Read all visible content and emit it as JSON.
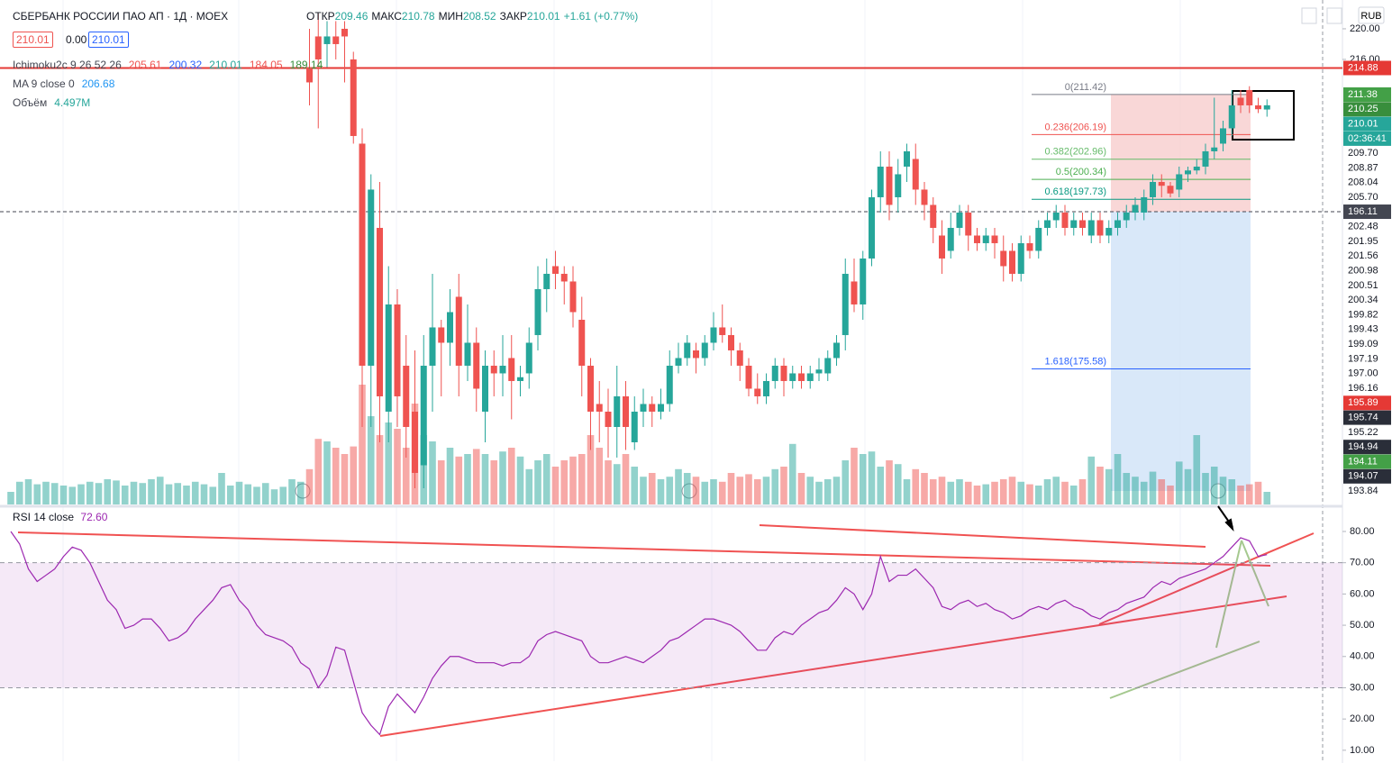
{
  "header": {
    "symbol": "СБЕРБАНК РОССИИ ПАО АП · 1Д · MOEX",
    "ohlc": [
      {
        "k": "ОТКР",
        "v": "209.46"
      },
      {
        "k": "МАКС",
        "v": "210.78"
      },
      {
        "k": "МИН",
        "v": "208.52"
      },
      {
        "k": "ЗАКР",
        "v": "210.01"
      }
    ],
    "change": "+1.61 (+0.77%)",
    "buttons": [
      "210.01",
      "0.00",
      "210.01"
    ],
    "currency": "RUB",
    "indicators": [
      {
        "name": "Ichimoku2c 9 26 52 26",
        "values": [
          "205.61",
          "200.32",
          "210.01",
          "184.05",
          "189.14"
        ],
        "colors": [
          "#ef5350",
          "#2962ff",
          "#26a69a",
          "#ef5350",
          "#388e3c"
        ]
      },
      {
        "name": "MA 9 close 0",
        "values": [
          "206.68"
        ],
        "colors": [
          "#2196f3"
        ]
      },
      {
        "name": "Объём",
        "values": [
          "4.497M"
        ],
        "colors": [
          "#26a69a"
        ]
      }
    ]
  },
  "chart_data": [
    {
      "type": "candlestick",
      "ylim": [
        157.88,
        223.76
      ],
      "yticks": [
        {
          "value": 220,
          "label": "220.00"
        },
        {
          "value": 216,
          "label": "216.00"
        }
      ],
      "volume_ylim": [
        0,
        400
      ],
      "up_color": "#26a69a",
      "down_color": "#ef5350",
      "open": [
        null,
        null,
        null,
        null,
        null,
        null,
        null,
        null,
        null,
        null,
        null,
        null,
        null,
        null,
        null,
        null,
        null,
        null,
        null,
        null,
        null,
        null,
        null,
        null,
        null,
        null,
        null,
        null,
        null,
        null,
        null,
        null,
        null,
        null,
        215,
        219,
        218,
        219,
        220,
        216,
        205,
        176,
        194,
        170,
        184,
        176,
        170,
        163,
        176,
        181,
        179,
        185,
        176,
        179,
        170,
        176,
        175,
        177,
        174,
        175,
        180,
        186,
        189,
        188,
        187,
        182,
        176,
        171,
        170,
        168,
        172,
        166,
        170,
        171,
        170,
        171,
        176,
        177,
        178,
        177,
        179,
        181,
        180,
        178,
        176,
        173,
        172,
        174,
        176,
        174,
        175,
        174,
        175,
        175,
        177,
        180,
        187,
        184,
        190,
        198,
        202,
        198,
        202,
        203,
        199,
        197,
        193,
        191,
        194,
        196,
        193,
        192,
        193,
        191,
        191,
        188,
        192,
        191,
        194,
        195,
        196,
        194,
        195,
        193,
        195,
        193,
        194,
        195,
        196,
        196,
        198,
        200,
        199.5,
        199,
        201,
        201.5,
        202,
        204,
        205,
        207,
        211,
        212,
        210,
        209.46
      ],
      "close": [
        null,
        null,
        null,
        null,
        null,
        null,
        null,
        null,
        null,
        null,
        null,
        null,
        null,
        null,
        null,
        null,
        null,
        null,
        null,
        null,
        null,
        null,
        null,
        null,
        null,
        null,
        null,
        null,
        null,
        null,
        null,
        null,
        null,
        null,
        213,
        216,
        219,
        218,
        219,
        206,
        176,
        199,
        172,
        184,
        172,
        168,
        162,
        176,
        181,
        179,
        183,
        176,
        179,
        173,
        176,
        175,
        176,
        174,
        174.5,
        179,
        186,
        188,
        188,
        187,
        183,
        176,
        170,
        170,
        168,
        172,
        168,
        170,
        171,
        170,
        171,
        176,
        177,
        179,
        177,
        179,
        181,
        180,
        178,
        176,
        173,
        172,
        174,
        176,
        174,
        175,
        174,
        175,
        175.5,
        177,
        179,
        188,
        184,
        190,
        198,
        202,
        197,
        201,
        204,
        199,
        197,
        194,
        190,
        194,
        196,
        193,
        192,
        193,
        192,
        189,
        188,
        192,
        191,
        194,
        195,
        196,
        194,
        195,
        194,
        195,
        193,
        194,
        195,
        196,
        197,
        198,
        200,
        199.5,
        198.5,
        201,
        201.5,
        202,
        204,
        204.5,
        207,
        210,
        210,
        210,
        209.5,
        210.01
      ],
      "high": [
        null,
        null,
        null,
        null,
        null,
        null,
        null,
        null,
        null,
        null,
        null,
        null,
        null,
        null,
        null,
        null,
        null,
        null,
        null,
        null,
        null,
        null,
        null,
        null,
        null,
        null,
        null,
        null,
        null,
        null,
        null,
        null,
        null,
        null,
        220,
        222,
        221,
        221,
        221,
        217,
        207,
        201,
        200,
        189,
        186,
        180,
        178,
        180,
        188,
        182,
        186,
        188,
        184,
        181,
        178,
        178,
        180,
        180,
        176,
        181,
        189,
        190,
        191,
        189,
        189,
        185,
        177,
        174,
        173,
        176,
        174,
        172,
        173,
        172,
        173,
        178,
        179,
        180,
        179,
        180,
        183,
        184,
        181,
        179,
        177,
        175,
        175,
        177,
        177,
        176,
        176,
        176,
        177,
        178,
        180,
        190,
        190,
        191,
        199,
        204,
        204,
        203,
        205,
        205,
        200,
        198,
        195,
        196,
        197,
        197,
        194,
        194,
        194,
        193,
        192,
        193,
        193,
        195,
        196,
        197,
        197,
        196,
        196,
        196,
        196,
        195,
        196,
        197,
        198,
        199,
        201,
        201,
        200,
        202,
        202,
        203,
        205,
        211,
        208,
        212,
        212,
        212.5,
        211,
        210.78
      ],
      "low": [
        null,
        null,
        null,
        null,
        null,
        null,
        null,
        null,
        null,
        null,
        null,
        null,
        null,
        null,
        null,
        null,
        null,
        null,
        null,
        null,
        null,
        null,
        null,
        null,
        null,
        null,
        null,
        null,
        null,
        null,
        null,
        null,
        null,
        null,
        210,
        207,
        215,
        216,
        213,
        205,
        168,
        168,
        166,
        166,
        168,
        164,
        160,
        160,
        170,
        172,
        176,
        172,
        174,
        170,
        166,
        172,
        172,
        169,
        172,
        173,
        178,
        183,
        186,
        184,
        181,
        172,
        165,
        166,
        164,
        164,
        165,
        165,
        168,
        168,
        169,
        170,
        175,
        176,
        175,
        176,
        178,
        179,
        176,
        174,
        172,
        171,
        171,
        173,
        172,
        173,
        173,
        173,
        174,
        174,
        176,
        178,
        183,
        182,
        189,
        196,
        195,
        196,
        200,
        197,
        195,
        192,
        188,
        190,
        193,
        191,
        191,
        191,
        190,
        187,
        187,
        187,
        190,
        190,
        193,
        194,
        193,
        193,
        193,
        192,
        192,
        192,
        193,
        194,
        195,
        195,
        197,
        198,
        198,
        198,
        200,
        201,
        201,
        203,
        204,
        206,
        209,
        209,
        209,
        208.52
      ],
      "volume": [
        10,
        18,
        20,
        16,
        18,
        17,
        15,
        14,
        16,
        18,
        17,
        20,
        19,
        15,
        18,
        17,
        20,
        22,
        16,
        17,
        15,
        18,
        16,
        14,
        25,
        15,
        18,
        16,
        14,
        17,
        12,
        14,
        20,
        18,
        28,
        52,
        50,
        45,
        40,
        46,
        95,
        70,
        55,
        65,
        60,
        45,
        80,
        55,
        50,
        35,
        45,
        38,
        40,
        44,
        40,
        35,
        42,
        45,
        38,
        28,
        35,
        40,
        30,
        35,
        38,
        40,
        55,
        45,
        35,
        32,
        40,
        30,
        22,
        25,
        20,
        22,
        28,
        25,
        22,
        18,
        20,
        18,
        25,
        22,
        24,
        20,
        22,
        28,
        30,
        48,
        25,
        22,
        18,
        20,
        22,
        35,
        45,
        40,
        42,
        30,
        35,
        32,
        20,
        28,
        25,
        20,
        22,
        18,
        20,
        18,
        15,
        16,
        18,
        20,
        22,
        18,
        16,
        15,
        20,
        22,
        18,
        15,
        20,
        38,
        30,
        28,
        40,
        25,
        22,
        18,
        26,
        20,
        15,
        34,
        28,
        55,
        25,
        30,
        22,
        20,
        15,
        16,
        18,
        10
      ],
      "levels": [
        {
          "value": 214.88,
          "label": "214.88",
          "color": "#e53935"
        },
        {
          "value": 196.11,
          "label": "196.11",
          "color": "#434651"
        }
      ],
      "fib": [
        {
          "value": 211.42,
          "label": "0(211.42)",
          "color": "#787b86"
        },
        {
          "value": 206.19,
          "label": "0.236(206.19)",
          "color": "#ef5350"
        },
        {
          "value": 202.96,
          "label": "0.382(202.96)",
          "color": "#66bb6a"
        },
        {
          "value": 200.34,
          "label": "0.5(200.34)",
          "color": "#4caf50"
        },
        {
          "value": 197.73,
          "label": "0.618(197.73)",
          "color": "#089981"
        },
        {
          "value": 175.58,
          "label": "1.618(175.58)",
          "color": "#2962ff"
        }
      ],
      "badges": [
        {
          "label": "211.38",
          "color": "#43a047"
        },
        {
          "label": "210.25",
          "color": "#388e3c"
        },
        {
          "label": "210.01",
          "color": "#26a69a"
        },
        {
          "label": "02:36:41",
          "color": "#26a69a"
        },
        {
          "label": "209.70"
        },
        {
          "label": "208.87"
        },
        {
          "label": "208.04"
        },
        {
          "label": "205.70"
        },
        {
          "label": "202.48"
        },
        {
          "label": "201.95"
        },
        {
          "label": "201.56"
        },
        {
          "label": "200.98"
        },
        {
          "label": "200.51"
        },
        {
          "label": "200.34"
        },
        {
          "label": "199.82"
        },
        {
          "label": "199.43"
        },
        {
          "label": "199.09"
        },
        {
          "label": "197.19"
        },
        {
          "label": "197.00"
        },
        {
          "label": "196.16"
        },
        {
          "label": "195.89",
          "color": "#e53935"
        },
        {
          "label": "195.74",
          "color": "#2a2e39"
        },
        {
          "label": "195.22"
        },
        {
          "label": "194.94",
          "color": "#2a2e39"
        },
        {
          "label": "194.11",
          "color": "#43a047"
        },
        {
          "label": "194.07",
          "color": "#2a2e39"
        },
        {
          "label": "193.84"
        }
      ]
    },
    {
      "type": "line",
      "title": "RSI 14 close",
      "last": "72.60",
      "color": "#9c27b0",
      "band": [
        30,
        70
      ],
      "ylim": [
        6.5,
        87.2
      ],
      "yticks": [
        {
          "value": 80,
          "label": "80.00"
        },
        {
          "value": 70,
          "label": "70.00"
        },
        {
          "value": 60,
          "label": "60.00"
        },
        {
          "value": 50,
          "label": "50.00"
        },
        {
          "value": 40,
          "label": "40.00"
        },
        {
          "value": 30,
          "label": "30.00"
        },
        {
          "value": 20,
          "label": "20.00"
        },
        {
          "value": 10,
          "label": "10.00"
        }
      ],
      "values": [
        80,
        76,
        68,
        64,
        66,
        68,
        72,
        75,
        74,
        70,
        64,
        58,
        55,
        49,
        50,
        52,
        52,
        49,
        45,
        46,
        48,
        52,
        55,
        58,
        62,
        63,
        58,
        55,
        50,
        47,
        46,
        45,
        43,
        38,
        36,
        30,
        34,
        43,
        42,
        32,
        22,
        18,
        15,
        24,
        28,
        25,
        22,
        27,
        33,
        37,
        40,
        40,
        39,
        38,
        38,
        38,
        37,
        38,
        38,
        40,
        45,
        47,
        48,
        47,
        46,
        45,
        40,
        38,
        38,
        39,
        40,
        39,
        38,
        40,
        42,
        45,
        46,
        48,
        50,
        52,
        52,
        51,
        50,
        48,
        45,
        42,
        42,
        46,
        48,
        47,
        50,
        52,
        54,
        55,
        58,
        62,
        60,
        55,
        60,
        72,
        64,
        66,
        66,
        68,
        65,
        62,
        56,
        55,
        57,
        58,
        56,
        57,
        55,
        54,
        52,
        53,
        55,
        56,
        55,
        57,
        58,
        56,
        55,
        53,
        52,
        54,
        55,
        57,
        58,
        59,
        62,
        64,
        63,
        65,
        66,
        67,
        68,
        70,
        72,
        75,
        78,
        77,
        72,
        72.6
      ]
    }
  ]
}
